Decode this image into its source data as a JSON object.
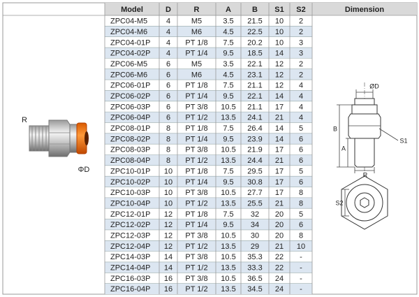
{
  "table": {
    "header": [
      "Model",
      "D",
      "R",
      "A",
      "B",
      "S1",
      "S2",
      "Dimension"
    ],
    "rows": [
      [
        "ZPC04-M5",
        4,
        "M5",
        3.5,
        21.5,
        10,
        2
      ],
      [
        "ZPC04-M6",
        4,
        "M6",
        4.5,
        22.5,
        10,
        2
      ],
      [
        "ZPC04-01P",
        4,
        "PT 1/8",
        7.5,
        20.2,
        10,
        3
      ],
      [
        "ZPC04-02P",
        4,
        "PT 1/4",
        9.5,
        18.5,
        14,
        3
      ],
      [
        "ZPC06-M5",
        6,
        "M5",
        3.5,
        22.1,
        12,
        2
      ],
      [
        "ZPC06-M6",
        6,
        "M6",
        4.5,
        23.1,
        12,
        2
      ],
      [
        "ZPC06-01P",
        6,
        "PT 1/8",
        7.5,
        21.1,
        12,
        4
      ],
      [
        "ZPC06-02P",
        6,
        "PT 1/4",
        9.5,
        22.1,
        14,
        4
      ],
      [
        "ZPC06-03P",
        6,
        "PT 3/8",
        10.5,
        21.1,
        17,
        4
      ],
      [
        "ZPC06-04P",
        6,
        "PT 1/2",
        13.5,
        24.1,
        21,
        4
      ],
      [
        "ZPC08-01P",
        8,
        "PT 1/8",
        7.5,
        26.4,
        14,
        5
      ],
      [
        "ZPC08-02P",
        8,
        "PT 1/4",
        9.5,
        23.9,
        14,
        6
      ],
      [
        "ZPC08-03P",
        8,
        "PT 3/8",
        10.5,
        21.9,
        17,
        6
      ],
      [
        "ZPC08-04P",
        8,
        "PT 1/2",
        13.5,
        24.4,
        21,
        6
      ],
      [
        "ZPC10-01P",
        10,
        "PT 1/8",
        7.5,
        29.5,
        17,
        5
      ],
      [
        "ZPC10-02P",
        10,
        "PT 1/4",
        9.5,
        30.8,
        17,
        6
      ],
      [
        "ZPC10-03P",
        10,
        "PT 3/8",
        10.5,
        27.7,
        17,
        8
      ],
      [
        "ZPC10-04P",
        10,
        "PT 1/2",
        13.5,
        25.5,
        21,
        8
      ],
      [
        "ZPC12-01P",
        12,
        "PT 1/8",
        7.5,
        32,
        20,
        5
      ],
      [
        "ZPC12-02P",
        12,
        "PT 1/4",
        9.5,
        34,
        20,
        6
      ],
      [
        "ZPC12-03P",
        12,
        "PT 3/8",
        10.5,
        30,
        20,
        8
      ],
      [
        "ZPC12-04P",
        12,
        "PT 1/2",
        13.5,
        29,
        21,
        10
      ],
      [
        "ZPC14-03P",
        14,
        "PT 3/8",
        10.5,
        35.3,
        22,
        "-"
      ],
      [
        "ZPC14-04P",
        14,
        "PT 1/2",
        13.5,
        33.3,
        22,
        "-"
      ],
      [
        "ZPC16-03P",
        16,
        "PT 3/8",
        10.5,
        36.5,
        24,
        "-"
      ],
      [
        "ZPC16-04P",
        16,
        "PT 1/2",
        13.5,
        34.5,
        24,
        "-"
      ]
    ]
  },
  "product_image": {
    "labels": [
      "R",
      "ΦD"
    ]
  },
  "dimension_drawing": {
    "labels": [
      "ØD",
      "B",
      "A",
      "S1",
      "R",
      "S2"
    ]
  }
}
